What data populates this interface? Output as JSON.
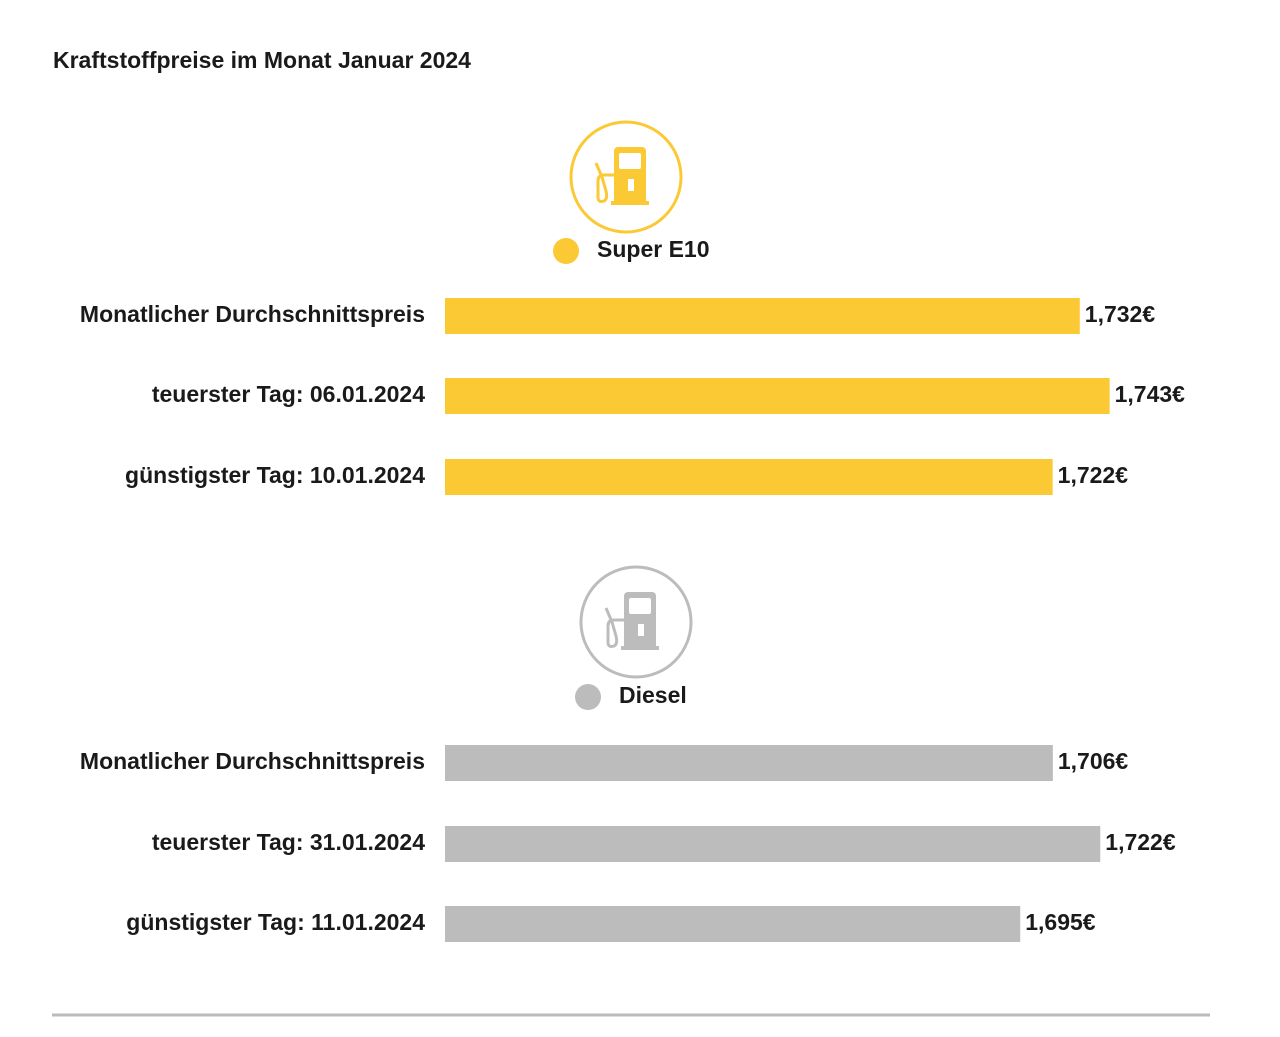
{
  "title": "Kraftstoffpreise im Monat Januar 2024",
  "chart_data": [
    {
      "type": "bar",
      "orientation": "horizontal",
      "categories": [
        "Monatlicher Durchschnittspreis",
        "teuerster Tag: 06.01.2024",
        "günstigster Tag: 10.01.2024"
      ],
      "series": [
        {
          "name": "Super E10",
          "color": "#fbc934",
          "values": [
            1.732,
            1.743,
            1.722
          ],
          "value_labels": [
            "1,732€",
            "1,743€",
            "1,722€"
          ]
        }
      ],
      "xlim": [
        1.498,
        1.78
      ]
    },
    {
      "type": "bar",
      "orientation": "horizontal",
      "categories": [
        "Monatlicher Durchschnittspreis",
        "teuerster Tag: 31.01.2024",
        "günstigster Tag: 11.01.2024"
      ],
      "series": [
        {
          "name": "Diesel",
          "color": "#bdbcbc",
          "values": [
            1.706,
            1.722,
            1.695
          ],
          "value_labels": [
            "1,706€",
            "1,722€",
            "1,695€"
          ]
        }
      ],
      "xlim": [
        1.501,
        1.759
      ]
    }
  ]
}
